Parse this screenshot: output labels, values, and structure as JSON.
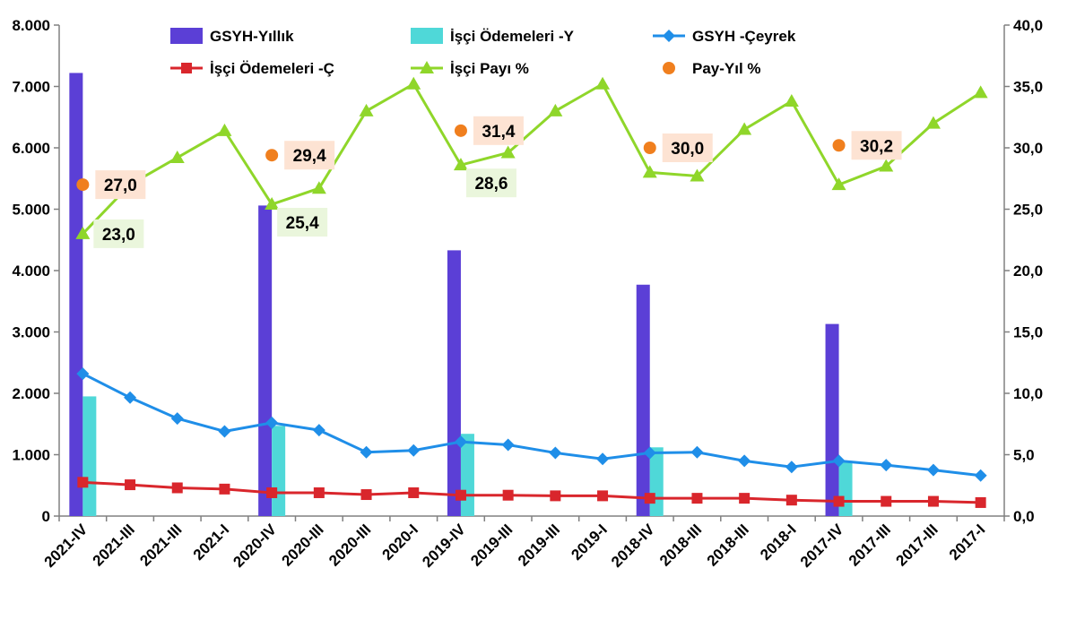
{
  "chart_data": {
    "type": "bar",
    "categories": [
      "2021-IV",
      "2021-III",
      "2021-III",
      "2021-I",
      "2020-IV",
      "2020-III",
      "2020-III",
      "2020-I",
      "2019-IV",
      "2019-III",
      "2019-III",
      "2019-I",
      "2018-IV",
      "2018-III",
      "2018-III",
      "2018-I",
      "2017-IV",
      "2017-III",
      "2017-III",
      "2017-I"
    ],
    "y_left": {
      "range": [
        0,
        8000
      ],
      "ticks": [
        "0",
        "1.000",
        "2.000",
        "3.000",
        "4.000",
        "5.000",
        "6.000",
        "7.000",
        "8.000"
      ]
    },
    "y_right": {
      "range": [
        0,
        40
      ],
      "ticks": [
        "0,0",
        "5,0",
        "10,0",
        "15,0",
        "20,0",
        "25,0",
        "30,0",
        "35,0",
        "40,0"
      ]
    },
    "series": [
      {
        "name": "GSYH-Yıllık",
        "kind": "bar",
        "axis": "left",
        "color": "#5b3fd6",
        "values": [
          7220,
          null,
          null,
          null,
          5060,
          null,
          null,
          null,
          4330,
          null,
          null,
          null,
          3770,
          null,
          null,
          null,
          3130,
          null,
          null,
          null
        ]
      },
      {
        "name": "İşçi Ödemeleri -Y",
        "kind": "bar",
        "axis": "left",
        "color": "#4fd8d8",
        "values": [
          1950,
          null,
          null,
          null,
          1470,
          null,
          null,
          null,
          1340,
          null,
          null,
          null,
          1120,
          null,
          null,
          null,
          900,
          null,
          null,
          null
        ]
      },
      {
        "name": "GSYH -Çeyrek",
        "kind": "line",
        "axis": "left",
        "color": "#1f8ee8",
        "marker": "diamond",
        "values": [
          2320,
          1930,
          1590,
          1380,
          1520,
          1400,
          1040,
          1070,
          1210,
          1160,
          1030,
          930,
          1030,
          1040,
          900,
          800,
          900,
          830,
          750,
          660
        ]
      },
      {
        "name": "İşçi Ödemeleri -Ç",
        "kind": "line",
        "axis": "left",
        "color": "#d9262c",
        "marker": "square",
        "values": [
          550,
          510,
          460,
          440,
          380,
          380,
          350,
          380,
          340,
          340,
          330,
          330,
          290,
          290,
          290,
          260,
          240,
          240,
          240,
          220
        ]
      },
      {
        "name": "İşçi Payı %",
        "kind": "line",
        "axis": "right",
        "color": "#8fd62a",
        "marker": "triangle",
        "values": [
          23.0,
          27.0,
          29.2,
          31.4,
          25.4,
          26.7,
          33.0,
          35.2,
          28.6,
          29.6,
          33.0,
          35.2,
          28.0,
          27.7,
          31.5,
          33.8,
          27.0,
          28.5,
          32.0,
          34.5
        ]
      },
      {
        "name": "Pay-Yıl %",
        "kind": "scatter",
        "axis": "right",
        "color": "#f07f1e",
        "marker": "circle",
        "values": [
          27.0,
          null,
          null,
          null,
          29.4,
          null,
          null,
          null,
          31.4,
          null,
          null,
          null,
          30.0,
          null,
          null,
          null,
          30.2,
          null,
          null,
          null
        ]
      }
    ],
    "data_labels": [
      {
        "series": "Pay-Yıl %",
        "index": 0,
        "text": "27,0"
      },
      {
        "series": "Pay-Yıl %",
        "index": 4,
        "text": "29,4"
      },
      {
        "series": "Pay-Yıl %",
        "index": 8,
        "text": "31,4"
      },
      {
        "series": "Pay-Yıl %",
        "index": 12,
        "text": "30,0"
      },
      {
        "series": "Pay-Yıl %",
        "index": 16,
        "text": "30,2"
      },
      {
        "series": "İşçi Payı %",
        "index": 0,
        "text": "23,0"
      },
      {
        "series": "İşçi Payı %",
        "index": 4,
        "text": "25,4"
      },
      {
        "series": "İşçi Payı %",
        "index": 8,
        "text": "28,6"
      }
    ],
    "label_colors": {
      "Pay-Yıl %": "#fde3d3",
      "İşçi Payı %": "#eaf6dc"
    },
    "legend": [
      {
        "series": "GSYH-Yıllık"
      },
      {
        "series": "İşçi Ödemeleri -Y"
      },
      {
        "series": "GSYH -Çeyrek"
      },
      {
        "series": "İşçi Ödemeleri -Ç"
      },
      {
        "series": "İşçi Payı %"
      },
      {
        "series": "Pay-Yıl %"
      }
    ],
    "legend_position": "top",
    "grid": false,
    "title": "",
    "xlabel": "",
    "ylabel": ""
  }
}
